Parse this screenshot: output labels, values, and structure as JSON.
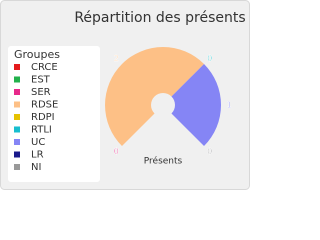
{
  "chart_data": {
    "type": "pie",
    "title": "Répartition des présents",
    "legend_title": "Groupes",
    "legend": "left",
    "series_name": "Présents",
    "categories": [
      "CRCE",
      "EST",
      "SER",
      "RDSE",
      "RDPI",
      "RTLI",
      "UC",
      "LR",
      "NI"
    ],
    "values": [
      0,
      0,
      0,
      2,
      0,
      0,
      1,
      0,
      0
    ],
    "colors": [
      "#e41a1c",
      "#22b14c",
      "#e7298a",
      "#fdc086",
      "#e6c200",
      "#17becf",
      "#8585f5",
      "#1a1a8c",
      "#999999"
    ],
    "start_angle": -135,
    "end_angle": 135
  }
}
